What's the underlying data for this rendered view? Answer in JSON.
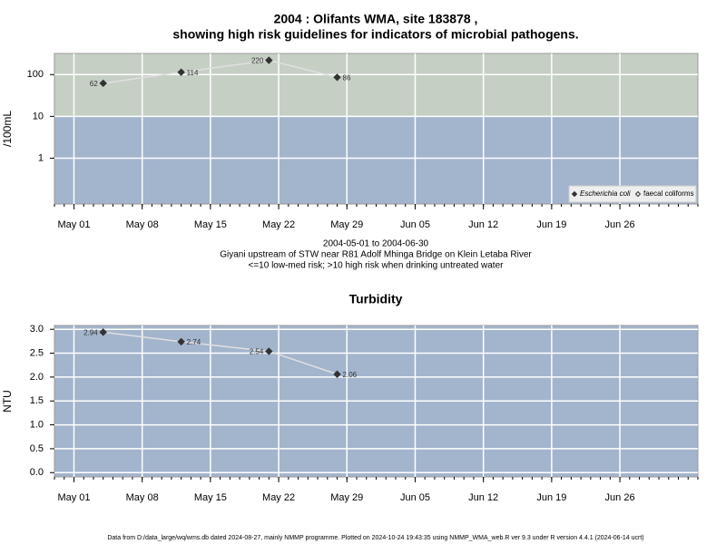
{
  "chart_data": [
    {
      "type": "line",
      "title": "2004 : Olifants WMA, site 183878 ,",
      "subtitle": "showing high risk guidelines for indicators of microbial pathogens.",
      "ylabel": "/100mL",
      "log_y": true,
      "x": [
        "2004-05-04",
        "2004-05-12",
        "2004-05-21",
        "2004-05-28"
      ],
      "series": [
        {
          "name": "Escherichia coli",
          "color": "#333333",
          "marker": "filled",
          "values": [
            62,
            114,
            220,
            86
          ]
        },
        {
          "name": "faecal coliforms",
          "color": "#333333",
          "marker": "open",
          "values": [
            null,
            null,
            null,
            null
          ]
        }
      ],
      "xlim": [
        "2004-04-29",
        "2004-07-04"
      ],
      "xticks": [
        {
          "value": "2004-05-01",
          "label": "May 01"
        },
        {
          "value": "2004-05-08",
          "label": "May 08"
        },
        {
          "value": "2004-05-15",
          "label": "May 15"
        },
        {
          "value": "2004-05-22",
          "label": "May 22"
        },
        {
          "value": "2004-05-29",
          "label": "May 29"
        },
        {
          "value": "2004-06-05",
          "label": "Jun 05"
        },
        {
          "value": "2004-06-12",
          "label": "Jun 12"
        },
        {
          "value": "2004-06-19",
          "label": "Jun 19"
        },
        {
          "value": "2004-06-26",
          "label": "Jun 26"
        }
      ],
      "ylim": [
        0.08,
        320
      ],
      "yticks": [
        1,
        10,
        100
      ],
      "threshold": 10,
      "color_above": "#c5cfc4",
      "color_below": "#a3b4cd",
      "grid": true,
      "legend": "bottom-right",
      "notes": [
        "2004-05-01 to 2004-06-30",
        "Giyani upstream of STW near R81 Adolf Mhinga Bridge on Klein Letaba River",
        "<=10 low-med risk; >10 high risk when drinking untreated water"
      ]
    },
    {
      "type": "line",
      "title": "Turbidity",
      "ylabel": "NTU",
      "log_y": false,
      "x": [
        "2004-05-04",
        "2004-05-12",
        "2004-05-21",
        "2004-05-28"
      ],
      "series": [
        {
          "name": "Turbidity",
          "color": "#333333",
          "marker": "filled",
          "values": [
            2.94,
            2.74,
            2.54,
            2.06
          ]
        }
      ],
      "xlim": [
        "2004-04-29",
        "2004-07-04"
      ],
      "xticks": [
        {
          "value": "2004-05-01",
          "label": "May 01"
        },
        {
          "value": "2004-05-08",
          "label": "May 08"
        },
        {
          "value": "2004-05-15",
          "label": "May 15"
        },
        {
          "value": "2004-05-22",
          "label": "May 22"
        },
        {
          "value": "2004-05-29",
          "label": "May 29"
        },
        {
          "value": "2004-06-05",
          "label": "Jun 05"
        },
        {
          "value": "2004-06-12",
          "label": "Jun 12"
        },
        {
          "value": "2004-06-19",
          "label": "Jun 19"
        },
        {
          "value": "2004-06-26",
          "label": "Jun 26"
        }
      ],
      "ylim": [
        -0.09,
        3.08
      ],
      "yticks": [
        {
          "value": 0,
          "label": "0.0"
        },
        {
          "value": 0.5,
          "label": "0.5"
        },
        {
          "value": 1,
          "label": "1.0"
        },
        {
          "value": 1.5,
          "label": "1.5"
        },
        {
          "value": 2,
          "label": "2.0"
        },
        {
          "value": 2.5,
          "label": "2.5"
        },
        {
          "value": 3,
          "label": "3.0"
        }
      ],
      "color_below": "#a3b4cd",
      "grid": true
    }
  ],
  "footer": "Data from D:/data_large/wq/wms.db dated 2024-08-27, mainly NMMP programme. Plotted on 2024-10-24 19:43:35 using NMMP_WMA_web.R ver 9.3 under R version 4.4.1 (2024-06-14 ucrt)"
}
